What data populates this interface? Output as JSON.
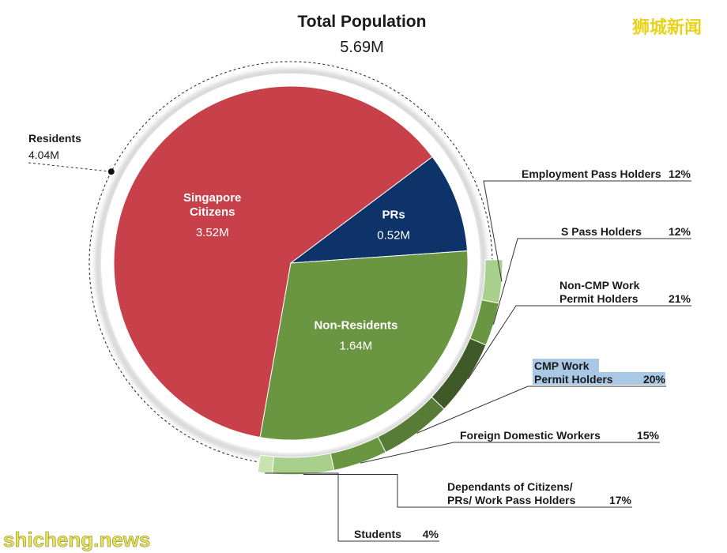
{
  "chart_data": {
    "type": "pie",
    "title": "Total Population",
    "subtitle": "5.69M",
    "residents_label": "Residents",
    "residents_value": "4.04M",
    "slices": [
      {
        "name": "Singapore Citizens",
        "label_lines": [
          "Singapore",
          "Citizens"
        ],
        "value": 3.52,
        "value_label": "3.52M",
        "color": "#c8414a"
      },
      {
        "name": "PRs",
        "label_lines": [
          "PRs"
        ],
        "value": 0.52,
        "value_label": "0.52M",
        "color": "#0d3368"
      },
      {
        "name": "Non-Residents",
        "label_lines": [
          "Non-Residents"
        ],
        "value": 1.64,
        "value_label": "1.64M",
        "color": "#6a9641"
      }
    ],
    "non_resident_breakdown": [
      {
        "label_lines": [
          "Employment Pass Holders"
        ],
        "percent": 12,
        "percent_label": "12%",
        "color": "#a9cf8d"
      },
      {
        "label_lines": [
          "S Pass Holders"
        ],
        "percent": 12,
        "percent_label": "12%",
        "color": "#6a9641"
      },
      {
        "label_lines": [
          "Non-CMP Work",
          "Permit Holders"
        ],
        "percent": 21,
        "percent_label": "21%",
        "color": "#3f5a28"
      },
      {
        "label_lines": [
          "CMP Work",
          "Permit Holders"
        ],
        "percent": 20,
        "percent_label": "20%",
        "color": "#577c36",
        "highlighted": true
      },
      {
        "label_lines": [
          "Foreign Domestic Workers"
        ],
        "percent": 15,
        "percent_label": "15%",
        "color": "#6a9641"
      },
      {
        "label_lines": [
          "Dependants of Citizens/",
          "PRs/ Work Pass Holders"
        ],
        "percent": 17,
        "percent_label": "17%",
        "color": "#a9cf8d"
      },
      {
        "label_lines": [
          "Students"
        ],
        "percent": 4,
        "percent_label": "4%",
        "color": "#c8e2b0"
      }
    ]
  },
  "watermarks": {
    "top_right": "狮城新闻",
    "bottom_left": "shicheng.news"
  },
  "colors": {
    "highlight": "#a9c8e6",
    "watermark_top": "#e8d21a",
    "watermark_bottom": "#e6e25a"
  }
}
